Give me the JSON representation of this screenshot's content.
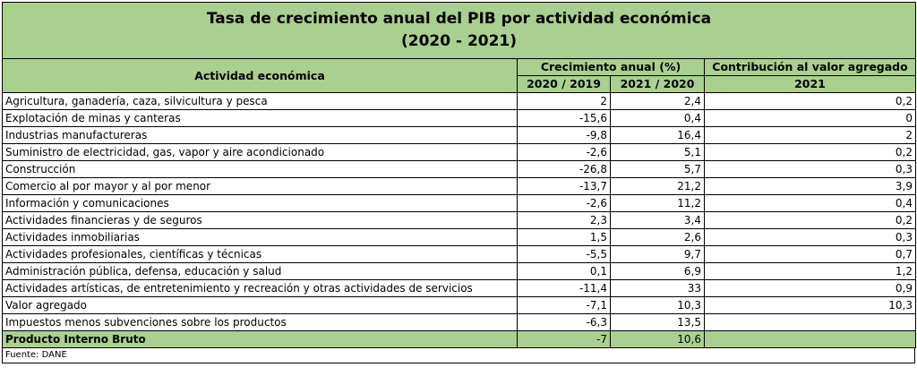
{
  "chart_data": {
    "type": "table",
    "title_line1": "Tasa de crecimiento anual del PIB por actividad económica",
    "title_line2": "(2020 - 2021)",
    "headers": {
      "activity": "Actividad económica",
      "growth_group": "Crecimiento anual (%)",
      "contribution_group": "Contribución al valor agregado",
      "col_2020": "2020 / 2019",
      "col_2021": "2021 / 2020",
      "col_contrib": "2021"
    },
    "rows": [
      {
        "activity": "Agricultura, ganadería, caza, silvicultura y pesca",
        "g2020": "2",
        "g2021": "2,4",
        "contrib": "0,2"
      },
      {
        "activity": "Explotación de minas y canteras",
        "g2020": "-15,6",
        "g2021": "0,4",
        "contrib": "0"
      },
      {
        "activity": "Industrias manufactureras",
        "g2020": "-9,8",
        "g2021": "16,4",
        "contrib": "2"
      },
      {
        "activity": "Suministro de electricidad, gas, vapor y aire acondicionado",
        "g2020": "-2,6",
        "g2021": "5,1",
        "contrib": "0,2"
      },
      {
        "activity": "Construcción",
        "g2020": "-26,8",
        "g2021": "5,7",
        "contrib": "0,3"
      },
      {
        "activity": "Comercio al por mayor y al por menor",
        "g2020": "-13,7",
        "g2021": "21,2",
        "contrib": "3,9"
      },
      {
        "activity": "Información y comunicaciones",
        "g2020": "-2,6",
        "g2021": "11,2",
        "contrib": "0,4"
      },
      {
        "activity": "Actividades financieras y de seguros",
        "g2020": "2,3",
        "g2021": "3,4",
        "contrib": "0,2"
      },
      {
        "activity": "Actividades inmobiliarias",
        "g2020": "1,5",
        "g2021": "2,6",
        "contrib": "0,3"
      },
      {
        "activity": "Actividades profesionales, científicas y técnicas",
        "g2020": "-5,5",
        "g2021": "9,7",
        "contrib": "0,7"
      },
      {
        "activity": "Administración pública, defensa, educación y salud",
        "g2020": "0,1",
        "g2021": "6,9",
        "contrib": "1,2"
      },
      {
        "activity": "Actividades artísticas, de entretenimiento y recreación y otras actividades de servicios",
        "g2020": "-11,4",
        "g2021": "33",
        "contrib": "0,9"
      },
      {
        "activity": "Valor agregado",
        "g2020": "-7,1",
        "g2021": "10,3",
        "contrib": "10,3"
      },
      {
        "activity": "Impuestos menos subvenciones sobre los productos",
        "g2020": "-6,3",
        "g2021": "13,5",
        "contrib": ""
      }
    ],
    "total": {
      "activity": "Producto Interno Bruto",
      "g2020": "-7",
      "g2021": "10,6",
      "contrib": ""
    },
    "source": "Fuente: DANE"
  }
}
